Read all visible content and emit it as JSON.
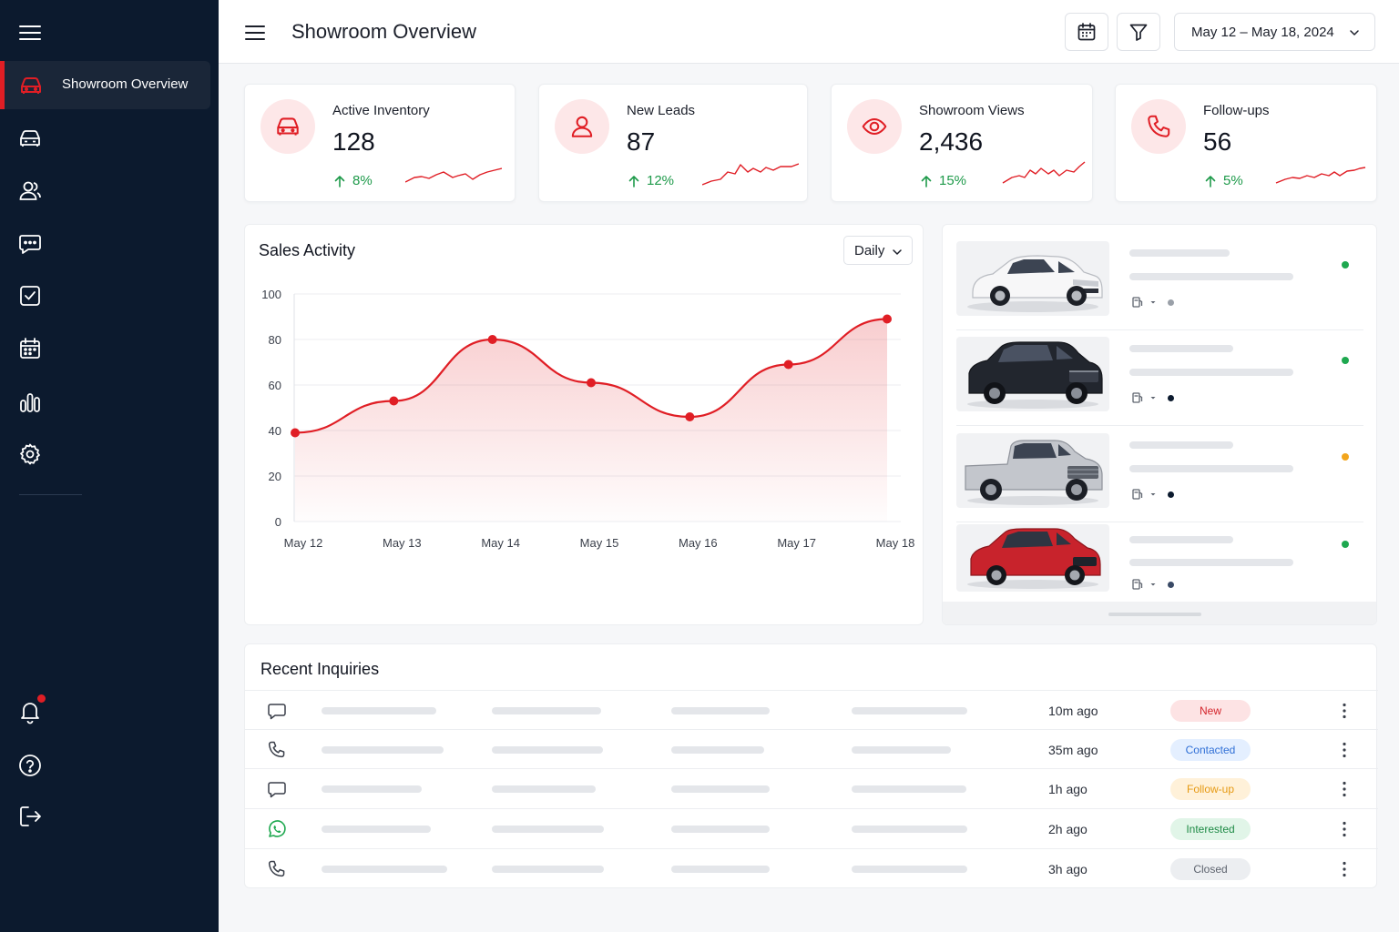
{
  "sidebar": {
    "active_label": "Showroom Overview",
    "icons": [
      "menu-icon",
      "car-icon",
      "car-front-icon",
      "users-icon",
      "chat-icon",
      "checkbox-icon",
      "calendar-icon",
      "bar-chart-icon",
      "settings-icon",
      "bell-icon",
      "help-icon",
      "logout-icon"
    ],
    "notification_color": "#e01e25"
  },
  "topbar": {
    "title": "Showroom Overview",
    "date_range": "May 12 – May 18, 2024"
  },
  "kpis": [
    {
      "label": "Active Inventory",
      "value": "128",
      "change": "8%",
      "icon": "car-icon"
    },
    {
      "label": "New Leads",
      "value": "87",
      "change": "12%",
      "icon": "user-icon"
    },
    {
      "label": "Showroom Views",
      "value": "2,436",
      "change": "15%",
      "icon": "eye-icon"
    },
    {
      "label": "Follow-ups",
      "value": "56",
      "change": "5%",
      "icon": "phone-icon"
    }
  ],
  "sales": {
    "title": "Sales Activity",
    "period": "Daily"
  },
  "chart_data": {
    "type": "area",
    "categories": [
      "May 12",
      "May 13",
      "May 14",
      "May 15",
      "May 16",
      "May 17",
      "May 18"
    ],
    "values": [
      39,
      53,
      80,
      61,
      46,
      69,
      89
    ],
    "ylim": [
      0,
      100
    ],
    "yticks": [
      0,
      20,
      40,
      60,
      80,
      100
    ],
    "grid": true,
    "color": "#e01e25"
  },
  "vehicles": [
    {
      "color": "white",
      "status_color": "#1ea84f",
      "meta_color": "#9aa0a8"
    },
    {
      "color": "black",
      "status_color": "#1ea84f",
      "meta_color": "#0c1a2e"
    },
    {
      "color": "silver",
      "status_color": "#f2a51d",
      "meta_color": "#0c1a2e"
    },
    {
      "color": "red",
      "status_color": "#1ea84f",
      "meta_color": "#3a4a66"
    }
  ],
  "inquiries": {
    "title": "Recent Inquiries",
    "rows": [
      {
        "channel": "chat-icon",
        "time": "10m ago",
        "status": "New",
        "badge_bg": "#fde3e4",
        "badge_fg": "#d4242b"
      },
      {
        "channel": "phone-icon",
        "time": "35m ago",
        "status": "Contacted",
        "badge_bg": "#e4efff",
        "badge_fg": "#2f6fd6"
      },
      {
        "channel": "chat-icon",
        "time": "1h ago",
        "status": "Follow-up",
        "badge_bg": "#fff1d9",
        "badge_fg": "#e69a14"
      },
      {
        "channel": "whatsapp-icon",
        "time": "2h ago",
        "status": "Interested",
        "badge_bg": "#e1f5e8",
        "badge_fg": "#1e8a45"
      },
      {
        "channel": "phone-icon",
        "time": "3h ago",
        "status": "Closed",
        "badge_bg": "#eceef1",
        "badge_fg": "#5d636e"
      }
    ]
  }
}
